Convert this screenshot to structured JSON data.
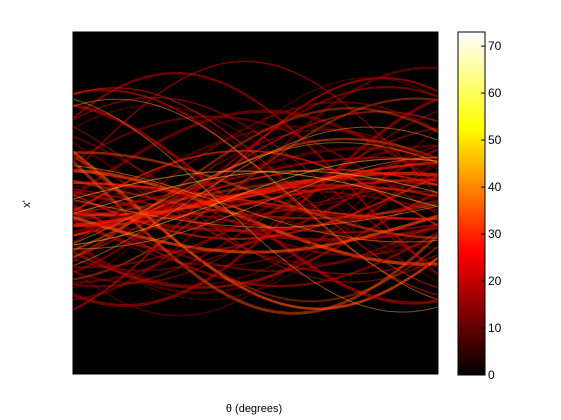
{
  "chart_data": {
    "type": "heatmap",
    "title": "",
    "xlabel": "θ (degrees)",
    "ylabel": "x'",
    "colormap": "hot",
    "colorbar": {
      "range": [
        0,
        73
      ],
      "ticks": [
        0,
        10,
        20,
        30,
        40,
        50,
        60,
        70
      ],
      "tick_labels": [
        "0",
        "10",
        "20",
        "30",
        "40",
        "50",
        "60",
        "70"
      ]
    },
    "x_ticks_shown": false,
    "y_ticks_shown": false,
    "background_color": "#000000",
    "colors": [
      "#000000",
      "#800000",
      "#ff0000",
      "#ff8000",
      "#ffff00",
      "#ffffff"
    ]
  }
}
